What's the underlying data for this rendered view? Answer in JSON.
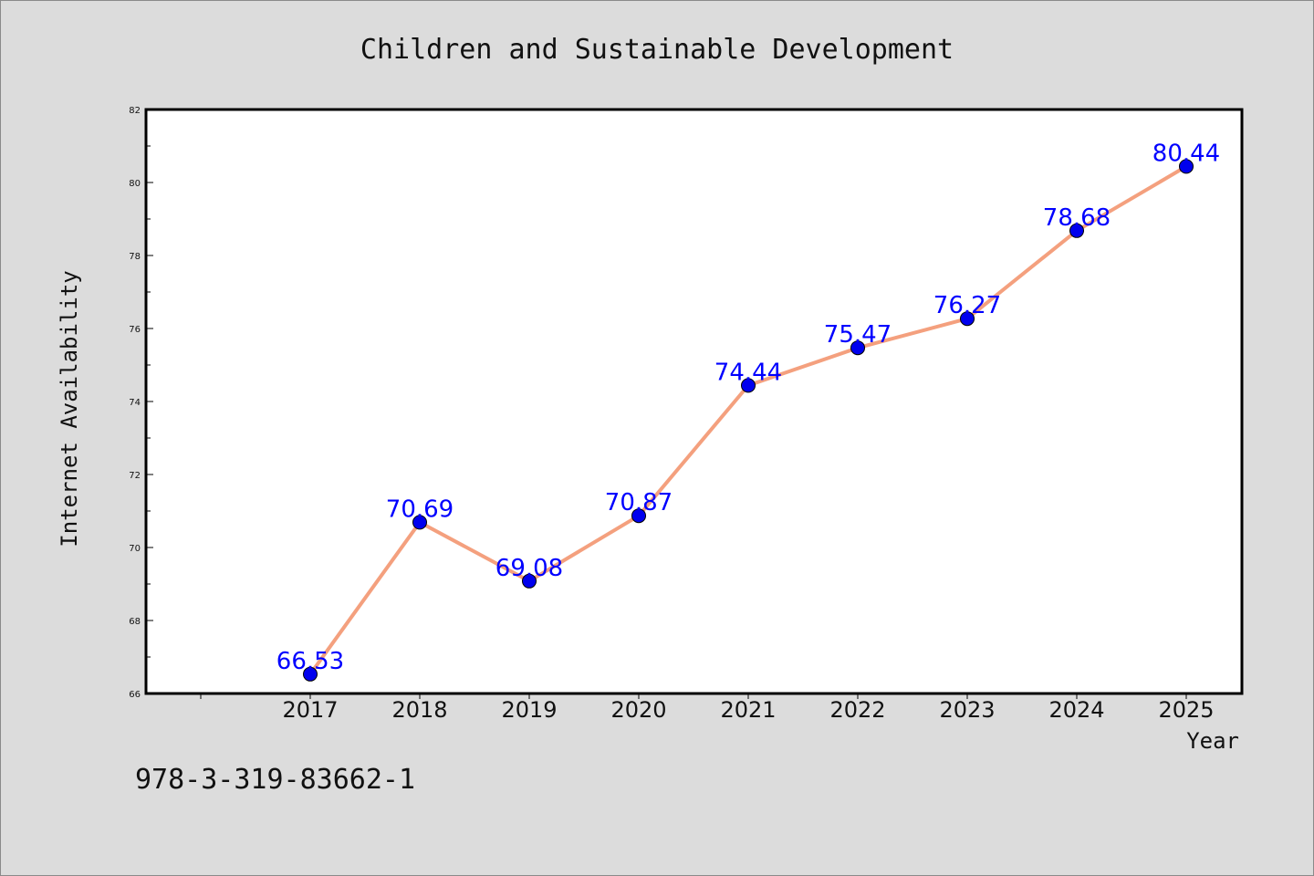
{
  "chart_data": {
    "type": "line",
    "title": "Children and Sustainable Development",
    "xlabel": "Year",
    "ylabel": "Internet Availability",
    "x": [
      "2017",
      "2018",
      "2019",
      "2020",
      "2021",
      "2022",
      "2023",
      "2024",
      "2025"
    ],
    "values": [
      66.53,
      70.69,
      69.08,
      70.87,
      74.44,
      75.47,
      76.27,
      78.68,
      80.44
    ],
    "data_labels": [
      "66.53",
      "70.69",
      "69.08",
      "70.87",
      "74.44",
      "75.47",
      "76.27",
      "78.68",
      "80.44"
    ],
    "ylim": [
      66,
      82
    ],
    "yticks": [
      66,
      68,
      70,
      72,
      74,
      76,
      78,
      80,
      82
    ],
    "grid": false,
    "line_color": "#f4a07e",
    "marker_color": "#0000ee",
    "label_color": "#0000ff"
  },
  "footer": {
    "isbn": "978-3-319-83662-1"
  }
}
